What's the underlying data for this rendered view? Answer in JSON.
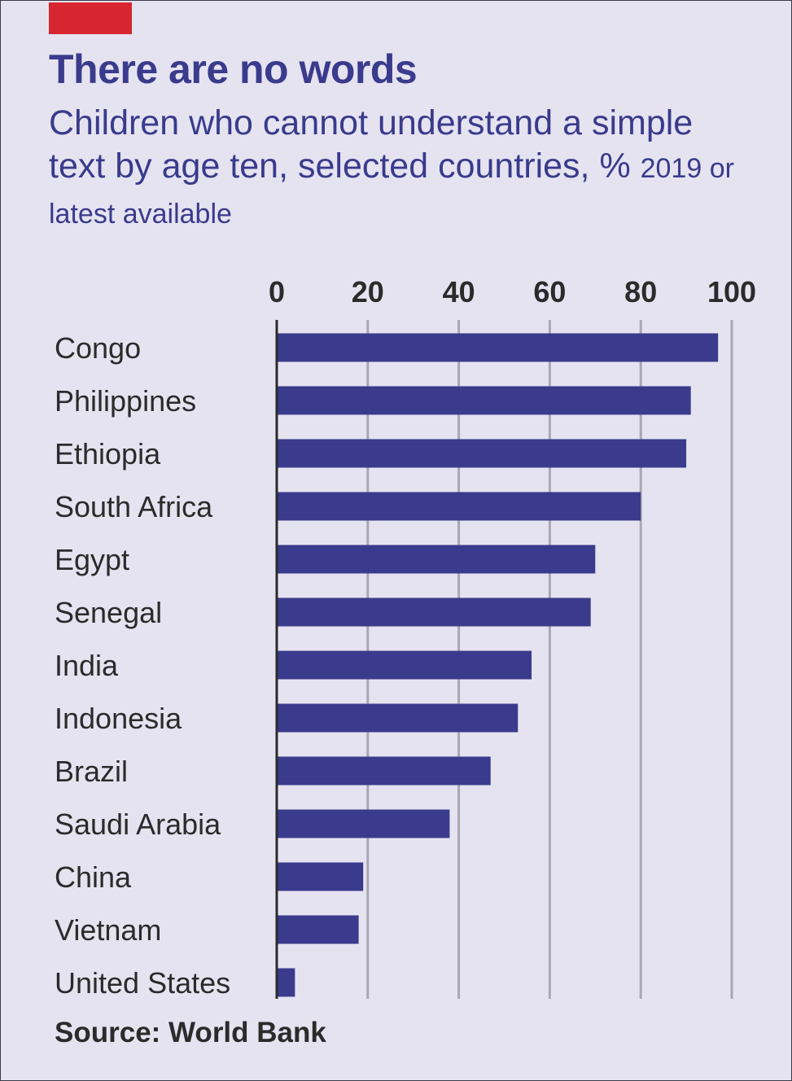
{
  "header": {
    "title": "There are no words",
    "subtitle": "Children who cannot understand a simple text by age ten, selected countries, %",
    "subtitle_note": "2019 or latest available"
  },
  "source": "Source: World Bank",
  "colors": {
    "background": "#e6e3f1",
    "bar": "#3a3b8c",
    "accent": "#d7262f",
    "gridline": "#a9a7b3",
    "axis": "#2b2b2b"
  },
  "chart_data": {
    "type": "bar",
    "orientation": "horizontal",
    "categories": [
      "Congo",
      "Philippines",
      "Ethiopia",
      "South Africa",
      "Egypt",
      "Senegal",
      "India",
      "Indonesia",
      "Brazil",
      "Saudi Arabia",
      "China",
      "Vietnam",
      "United States"
    ],
    "values": [
      97,
      91,
      90,
      80,
      70,
      69,
      56,
      53,
      47,
      38,
      19,
      18,
      4
    ],
    "xlim": [
      0,
      100
    ],
    "xticks": [
      "0",
      "20",
      "40",
      "60",
      "80",
      "100"
    ],
    "tick_position": "top",
    "grid": true
  }
}
